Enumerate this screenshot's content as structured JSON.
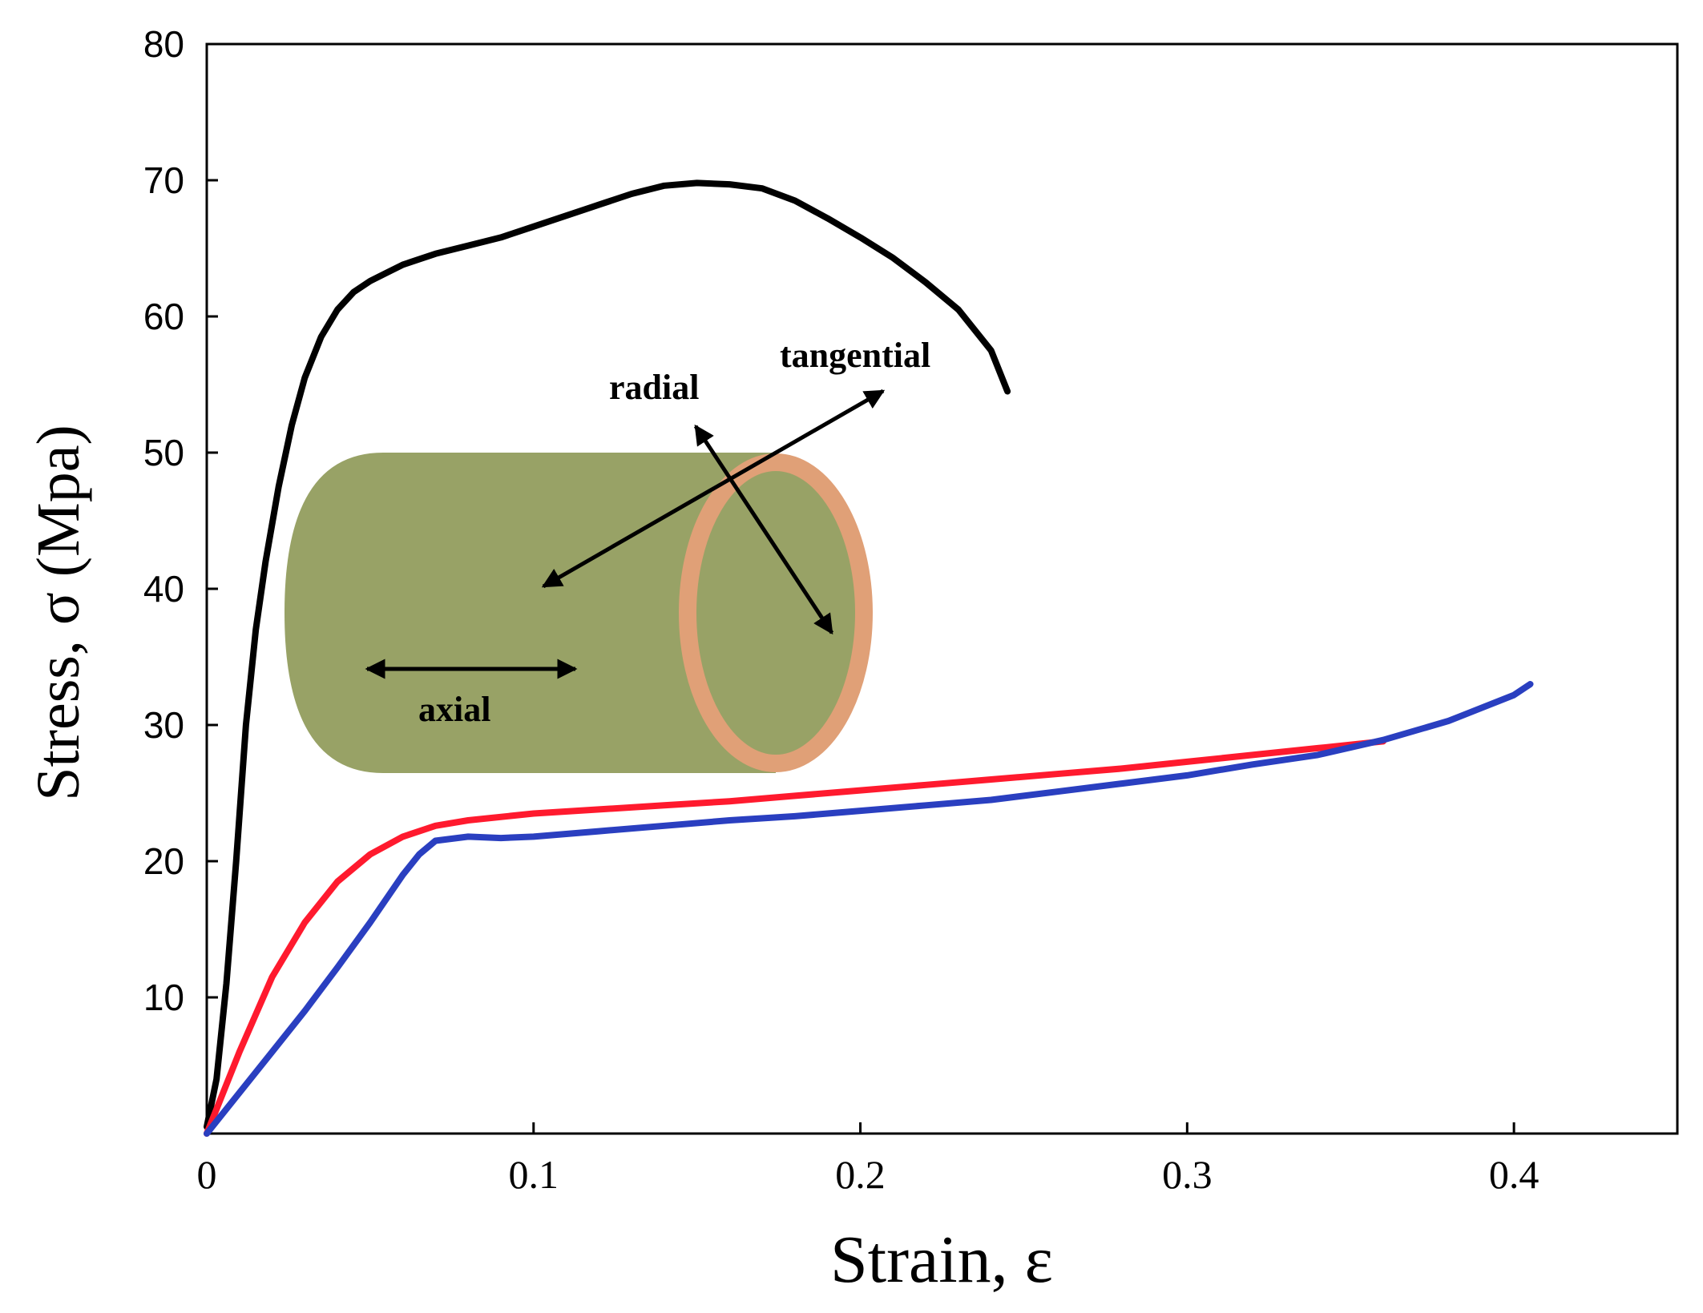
{
  "chart_data": {
    "type": "line",
    "title": "",
    "xlabel": "Strain, ε",
    "ylabel": "Stress, σ (Mpa)",
    "xlim": [
      0,
      0.45
    ],
    "ylim": [
      0,
      80
    ],
    "x_ticks": [
      {
        "value": 0,
        "label": "0"
      },
      {
        "value": 0.1,
        "label": "0.1"
      },
      {
        "value": 0.2,
        "label": "0.2"
      },
      {
        "value": 0.3,
        "label": "0.3"
      },
      {
        "value": 0.4,
        "label": "0.4"
      }
    ],
    "y_ticks": [
      {
        "value": 10,
        "label": "10"
      },
      {
        "value": 20,
        "label": "20"
      },
      {
        "value": 30,
        "label": "30"
      },
      {
        "value": 40,
        "label": "40"
      },
      {
        "value": 50,
        "label": "50"
      },
      {
        "value": 60,
        "label": "60"
      },
      {
        "value": 70,
        "label": "70"
      },
      {
        "value": 80,
        "label": "80"
      }
    ],
    "grid": false,
    "series": [
      {
        "name": "black curve",
        "color": "#000000",
        "x": [
          0,
          0.003,
          0.006,
          0.009,
          0.012,
          0.015,
          0.018,
          0.022,
          0.026,
          0.03,
          0.035,
          0.04,
          0.045,
          0.05,
          0.055,
          0.06,
          0.065,
          0.07,
          0.08,
          0.09,
          0.1,
          0.11,
          0.12,
          0.13,
          0.14,
          0.15,
          0.16,
          0.17,
          0.18,
          0.19,
          0.2,
          0.21,
          0.22,
          0.23,
          0.24,
          0.245
        ],
        "y": [
          0.5,
          4,
          11,
          20,
          30,
          37,
          42,
          47.5,
          52,
          55.5,
          58.5,
          60.5,
          61.8,
          62.6,
          63.2,
          63.8,
          64.2,
          64.6,
          65.2,
          65.8,
          66.6,
          67.4,
          68.2,
          69,
          69.6,
          69.8,
          69.7,
          69.4,
          68.5,
          67.2,
          65.8,
          64.3,
          62.5,
          60.5,
          57.5,
          54.5
        ]
      },
      {
        "name": "red curve",
        "color": "#ff1a2e",
        "x": [
          0,
          0.01,
          0.02,
          0.03,
          0.04,
          0.05,
          0.06,
          0.07,
          0.08,
          0.1,
          0.12,
          0.14,
          0.16,
          0.18,
          0.2,
          0.22,
          0.24,
          0.26,
          0.28,
          0.3,
          0.32,
          0.34,
          0.36
        ],
        "y": [
          0,
          6,
          11.5,
          15.5,
          18.5,
          20.5,
          21.8,
          22.6,
          23,
          23.5,
          23.8,
          24.1,
          24.4,
          24.8,
          25.2,
          25.6,
          26,
          26.4,
          26.8,
          27.3,
          27.8,
          28.3,
          28.8
        ]
      },
      {
        "name": "blue curve",
        "color": "#2a3fc0",
        "x": [
          0,
          0.01,
          0.02,
          0.03,
          0.04,
          0.05,
          0.06,
          0.065,
          0.07,
          0.08,
          0.09,
          0.1,
          0.12,
          0.14,
          0.16,
          0.18,
          0.2,
          0.22,
          0.24,
          0.26,
          0.28,
          0.3,
          0.32,
          0.34,
          0.36,
          0.38,
          0.4,
          0.405
        ],
        "y": [
          0,
          3,
          6,
          9,
          12.2,
          15.5,
          19,
          20.5,
          21.5,
          21.8,
          21.7,
          21.8,
          22.2,
          22.6,
          23,
          23.3,
          23.7,
          24.1,
          24.5,
          25.1,
          25.7,
          26.3,
          27.1,
          27.8,
          28.9,
          30.3,
          32.2,
          33
        ]
      }
    ],
    "annotations": [
      "tangential",
      "radial",
      "axial"
    ]
  },
  "inset": {
    "cylinder_body_color": "#98a266",
    "cylinder_rim_color": "#e0a077"
  }
}
